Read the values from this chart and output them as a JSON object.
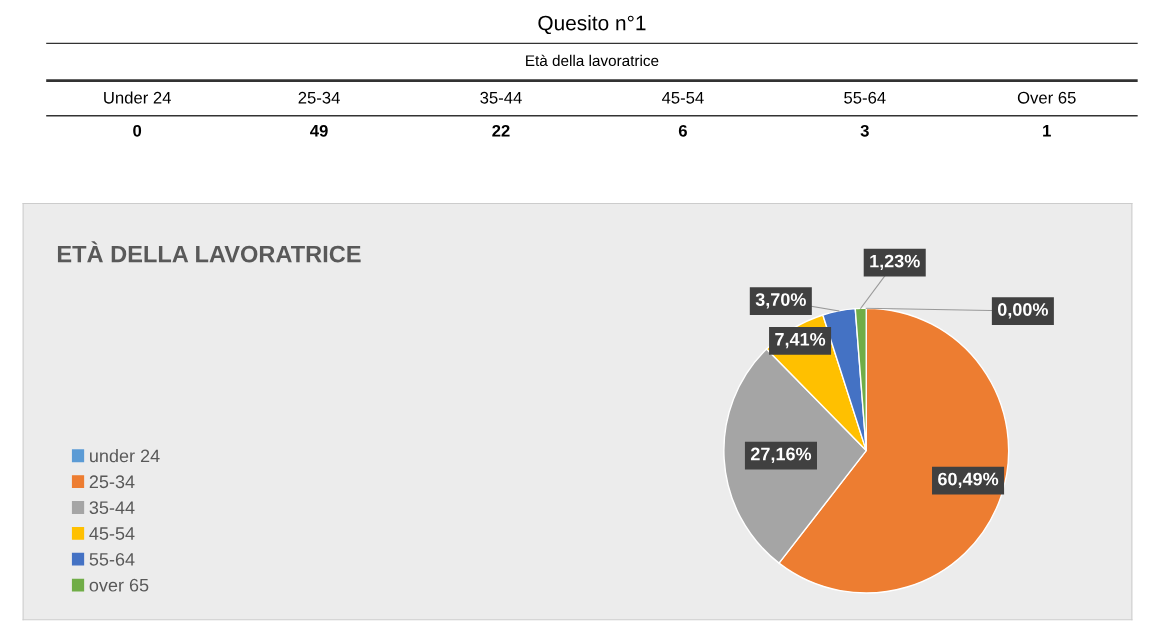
{
  "chart_data": [
    {
      "type": "other",
      "title": "Quesito n°1",
      "subtitle": "Età della lavoratrice",
      "categories": [
        "Under 24",
        "25-34",
        "35-44",
        "45-54",
        "55-64",
        "Over 65"
      ],
      "values": [
        0,
        49,
        22,
        6,
        3,
        1
      ],
      "data_labels": true
    },
    {
      "type": "pie",
      "title": "ETÀ DELLA LAVORATRICE",
      "categories": [
        "under 24",
        "25-34",
        "35-44",
        "45-54",
        "55-64",
        "over 65"
      ],
      "values": [
        0,
        60.49,
        27.16,
        7.41,
        3.7,
        1.23
      ],
      "value_labels": [
        "0,00%",
        "60,49%",
        "27,16%",
        "7,41%",
        "3,70%",
        "1,23%"
      ],
      "colors": [
        "#5b9bd5",
        "#ed7d31",
        "#a5a5a5",
        "#ffc000",
        "#4472c4",
        "#70ad47"
      ],
      "legend": "left"
    }
  ]
}
